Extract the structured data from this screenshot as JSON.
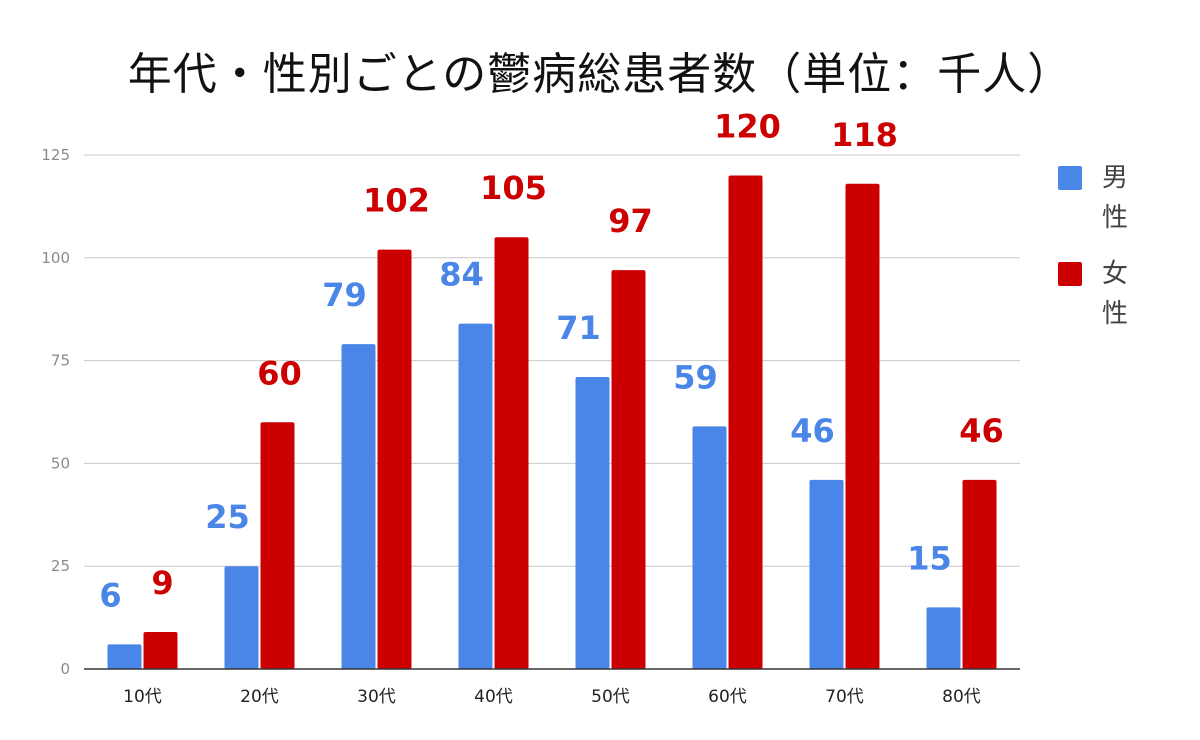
{
  "chart_data": {
    "type": "bar",
    "title": "年代・性別ごとの鬱病総患者数（単位：千人）",
    "categories": [
      "10代",
      "20代",
      "30代",
      "40代",
      "50代",
      "60代",
      "70代",
      "80代"
    ],
    "series": [
      {
        "name": "男性",
        "color": "#4a86e8",
        "label_color": "#4a86e8",
        "values": [
          6,
          25,
          79,
          84,
          71,
          59,
          46,
          15
        ]
      },
      {
        "name": "女性",
        "color": "#cc0000",
        "label_color": "#cc0000",
        "values": [
          9,
          60,
          102,
          105,
          97,
          120,
          118,
          46
        ]
      }
    ],
    "ylim": [
      0,
      125
    ],
    "yticks": [
      0,
      25,
      50,
      75,
      100,
      125
    ],
    "grid": true,
    "legend_position": "right"
  }
}
